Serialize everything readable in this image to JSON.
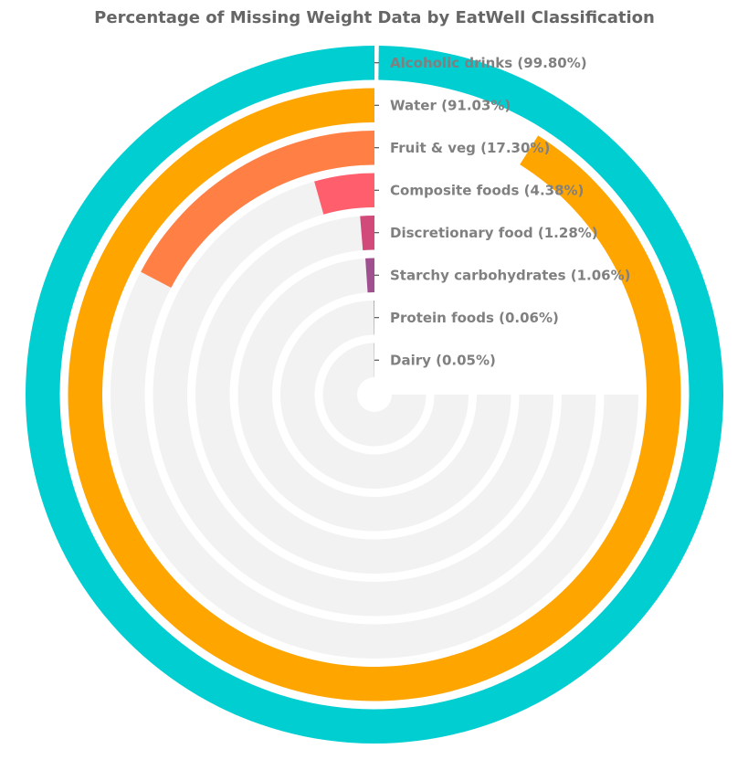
{
  "chart_data": {
    "type": "radial-bar",
    "title": "Percentage of Missing Weight Data by EatWell Classification",
    "max": 100,
    "series": [
      {
        "category": "Alcoholic drinks",
        "value": 99.8,
        "label": "Alcoholic drinks (99.80%)",
        "color": "#00CED1"
      },
      {
        "category": "Water",
        "value": 91.03,
        "label": "Water (91.03%)",
        "color": "#FFA500"
      },
      {
        "category": "Fruit & veg",
        "value": 17.3,
        "label": "Fruit & veg (17.30%)",
        "color": "#FF7F45"
      },
      {
        "category": "Composite foods",
        "value": 4.38,
        "label": "Composite foods (4.38%)",
        "color": "#FF5E6C"
      },
      {
        "category": "Discretionary food",
        "value": 1.28,
        "label": "Discretionary food (1.28%)",
        "color": "#D14A7A"
      },
      {
        "category": "Starchy carbohydrates",
        "value": 1.06,
        "label": "Starchy carbohydrates (1.06%)",
        "color": "#A0508F"
      },
      {
        "category": "Protein foods",
        "value": 0.06,
        "label": "Protein foods (0.06%)",
        "color": "#6A4C93"
      },
      {
        "category": "Dairy",
        "value": 0.05,
        "label": "Dairy (0.05%)",
        "color": "#4B3F8C"
      }
    ],
    "track_color": "#F2F2F2",
    "label_color": "#808080",
    "title_color": "#666666"
  }
}
